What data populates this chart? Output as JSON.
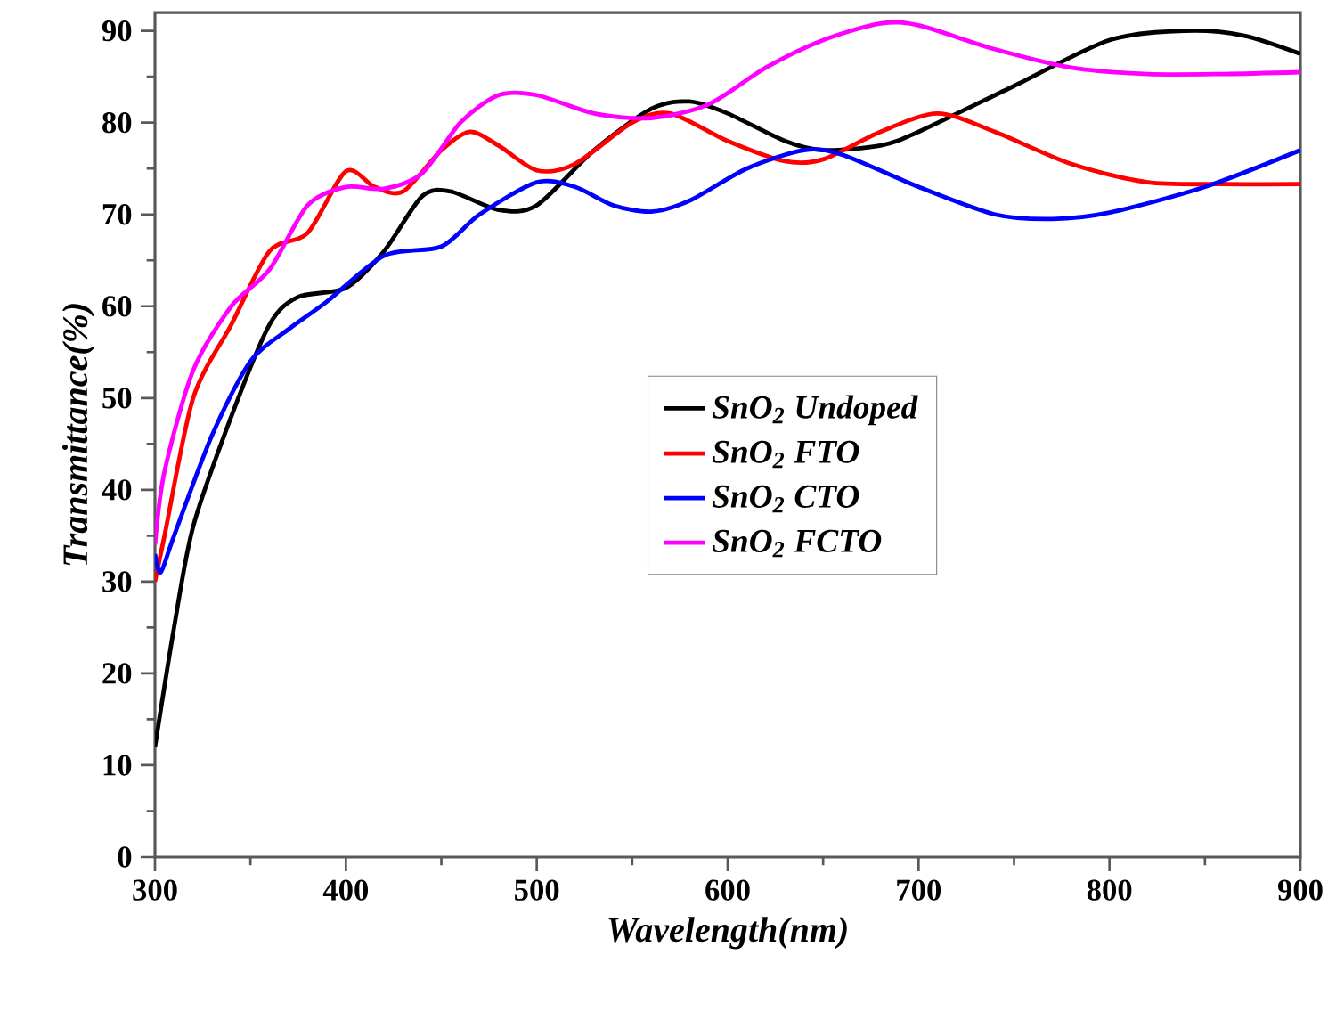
{
  "chart_data": {
    "type": "line",
    "xlabel": "Wavelength(nm)",
    "ylabel": "Transmittance(%)",
    "xlim": [
      300,
      900
    ],
    "xticks": [
      300,
      400,
      500,
      600,
      700,
      800,
      900
    ],
    "ylim": [
      0,
      92
    ],
    "yticks": [
      0,
      10,
      20,
      30,
      40,
      50,
      60,
      70,
      80,
      90
    ],
    "grid": false,
    "legend": "center",
    "marker": "none",
    "line_style": "solid",
    "series": [
      {
        "name": "SnO$_{2}$ Undoped",
        "color": "#000000",
        "x": [
          300,
          310,
          320,
          340,
          360,
          375,
          400,
          420,
          440,
          455,
          480,
          500,
          530,
          560,
          580,
          600,
          630,
          650,
          680,
          700,
          750,
          800,
          840,
          870,
          900
        ],
        "values": [
          12,
          25,
          36,
          48,
          58,
          61,
          62,
          66,
          72,
          72.5,
          70.5,
          71,
          77,
          81.5,
          82.3,
          81,
          78,
          77,
          77.5,
          79,
          84,
          89,
          90,
          89.5,
          87.5
        ]
      },
      {
        "name": "SnO$_{2}$ FTO",
        "color": "#ff0000",
        "x": [
          300,
          305,
          320,
          340,
          360,
          380,
          400,
          415,
          430,
          450,
          465,
          480,
          500,
          520,
          550,
          570,
          600,
          630,
          650,
          680,
          710,
          740,
          780,
          820,
          860,
          900
        ],
        "values": [
          30,
          35,
          50,
          58,
          66,
          68,
          74.7,
          73,
          72.5,
          77,
          79,
          77.5,
          74.8,
          75.5,
          80,
          81,
          78,
          75.8,
          76,
          79,
          81,
          79,
          75.5,
          73.5,
          73.3,
          73.3
        ]
      },
      {
        "name": "SnO$_{2}$ CTO",
        "color": "#0000ff",
        "x": [
          300,
          303,
          310,
          330,
          350,
          370,
          390,
          420,
          450,
          470,
          500,
          520,
          540,
          560,
          580,
          610,
          640,
          660,
          700,
          740,
          770,
          800,
          850,
          900
        ],
        "values": [
          33,
          31,
          35,
          46,
          54,
          57.5,
          60.5,
          65.5,
          66.5,
          70,
          73.5,
          73,
          71,
          70.3,
          71.5,
          75,
          77,
          76.5,
          73,
          70,
          69.5,
          70.2,
          73,
          77
        ]
      },
      {
        "name": "SnO$_{2}$ FCTO",
        "color": "#ff00ff",
        "x": [
          300,
          305,
          320,
          340,
          360,
          380,
          400,
          420,
          440,
          460,
          480,
          500,
          530,
          560,
          590,
          620,
          650,
          680,
          700,
          740,
          780,
          820,
          860,
          900
        ],
        "values": [
          34,
          42,
          53,
          60,
          64,
          71,
          73,
          72.8,
          74.5,
          80,
          83,
          83,
          81,
          80.5,
          82,
          86,
          89,
          90.8,
          90.6,
          88,
          86,
          85.3,
          85.3,
          85.5
        ]
      }
    ]
  }
}
